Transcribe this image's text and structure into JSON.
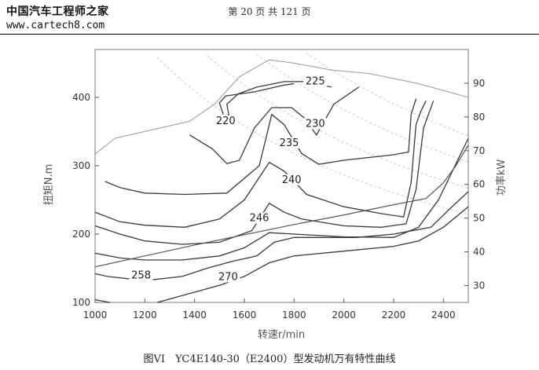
{
  "header": {
    "logo": "中国汽车工程师之家",
    "page_info": "第 20 页 共 121 页",
    "url": "www.cartech8.com"
  },
  "caption": "图VI　YC4E140-30（E2400）型发动机万有特性曲线",
  "chart_data": {
    "type": "line",
    "title": "",
    "xlabel": "转速r/min",
    "ylabel": "扭矩N.m",
    "y2label": "功率kW",
    "xlim": [
      1000,
      2500
    ],
    "ylim": [
      100,
      470
    ],
    "y2lim": [
      25,
      100
    ],
    "xticks": [
      1000,
      1200,
      1400,
      1600,
      1800,
      2000,
      2200,
      2400
    ],
    "yticks": [
      100,
      200,
      300,
      400
    ],
    "y2ticks": [
      30,
      40,
      50,
      60,
      70,
      80,
      90
    ],
    "grid": false,
    "outer_torque_curve": {
      "x": [
        1000,
        1080,
        1200,
        1380,
        1480,
        1580,
        1700,
        1800,
        1950,
        2100,
        2300,
        2500
      ],
      "y": [
        317,
        340,
        350,
        365,
        390,
        430,
        455,
        450,
        440,
        435,
        420,
        400
      ]
    },
    "power_curve": {
      "x": [
        1000,
        1200,
        1400,
        1600,
        1800,
        2000,
        2200,
        2330,
        2400,
        2450,
        2500
      ],
      "y": [
        152,
        168,
        184,
        199,
        214,
        228,
        243,
        252,
        275,
        300,
        330
      ]
    },
    "contours": [
      {
        "label": "220",
        "x": [
          1515,
          1500,
          1525,
          1580,
          1640,
          1700,
          1760,
          1800
        ],
        "y": [
          375,
          392,
          402,
          405,
          408,
          413,
          418,
          420
        ]
      },
      {
        "label": "225",
        "x": [
          1540,
          1530,
          1575,
          1650,
          1760,
          1850,
          1950
        ],
        "y": [
          368,
          390,
          405,
          415,
          423,
          423,
          415
        ]
      },
      {
        "label": "230",
        "x": [
          1380,
          1470,
          1530,
          1580,
          1640,
          1710,
          1790,
          1840,
          1890,
          1960,
          2060
        ],
        "y": [
          345,
          325,
          303,
          308,
          355,
          385,
          385,
          370,
          345,
          390,
          415
        ]
      },
      {
        "label": "235",
        "x": [
          1040,
          1100,
          1200,
          1360,
          1530,
          1660,
          1710,
          1760,
          1830,
          1900,
          2000,
          2100,
          2200,
          2260,
          2270,
          2290
        ],
        "y": [
          277,
          268,
          260,
          258,
          260,
          300,
          375,
          360,
          318,
          302,
          308,
          312,
          316,
          320,
          375,
          398
        ]
      },
      {
        "label": "240",
        "x": [
          1000,
          1100,
          1200,
          1360,
          1500,
          1600,
          1700,
          1760,
          1850,
          2000,
          2150,
          2240,
          2270,
          2290,
          2310,
          2330
        ],
        "y": [
          232,
          218,
          213,
          210,
          222,
          250,
          305,
          292,
          258,
          240,
          230,
          225,
          275,
          360,
          380,
          395
        ]
      },
      {
        "label": "246",
        "x": [
          1000,
          1100,
          1200,
          1350,
          1500,
          1630,
          1700,
          1760,
          1830,
          2000,
          2150,
          2250,
          2290,
          2320,
          2340,
          2360
        ],
        "y": [
          212,
          200,
          190,
          185,
          188,
          205,
          245,
          232,
          222,
          212,
          210,
          215,
          265,
          355,
          375,
          395
        ]
      },
      {
        "label": "258",
        "x": [
          1000,
          1100,
          1200,
          1350,
          1500,
          1600,
          1700,
          1800,
          2000,
          2200,
          2300,
          2380,
          2420,
          2460,
          2500
        ],
        "y": [
          172,
          165,
          162,
          162,
          168,
          180,
          202,
          200,
          196,
          195,
          210,
          250,
          280,
          310,
          340
        ]
      },
      {
        "label": "270",
        "x": [
          1000,
          1050,
          1200,
          1350,
          1450,
          1550,
          1650,
          1720,
          1800,
          1900,
          2050,
          2200,
          2350,
          2420,
          2500
        ],
        "y": [
          142,
          138,
          132,
          138,
          150,
          160,
          168,
          188,
          195,
          195,
          195,
          200,
          210,
          235,
          262
        ]
      },
      {
        "label": "",
        "x": [
          1250,
          1350,
          1500,
          1600,
          1700,
          1800,
          2000,
          2200,
          2300,
          2400,
          2500
        ],
        "y": [
          100,
          110,
          125,
          138,
          158,
          168,
          175,
          182,
          190,
          210,
          240
        ]
      },
      {
        "label": "",
        "x": [
          1000,
          1060
        ],
        "y": [
          104,
          100
        ]
      }
    ],
    "contour_labels": [
      {
        "text": "225",
        "x": 1885,
        "y": 420
      },
      {
        "text": "220",
        "x": 1525,
        "y": 362
      },
      {
        "text": "230",
        "x": 1885,
        "y": 358
      },
      {
        "text": "235",
        "x": 1780,
        "y": 330
      },
      {
        "text": "240",
        "x": 1790,
        "y": 276
      },
      {
        "text": "246",
        "x": 1660,
        "y": 220
      },
      {
        "text": "258",
        "x": 1185,
        "y": 136
      },
      {
        "text": "270",
        "x": 1535,
        "y": 134
      }
    ]
  },
  "colors": {
    "contour": "#3a3a3a",
    "boundary": "#9a9a9a",
    "isopower": "#c8c8c8",
    "axis": "#555555"
  }
}
